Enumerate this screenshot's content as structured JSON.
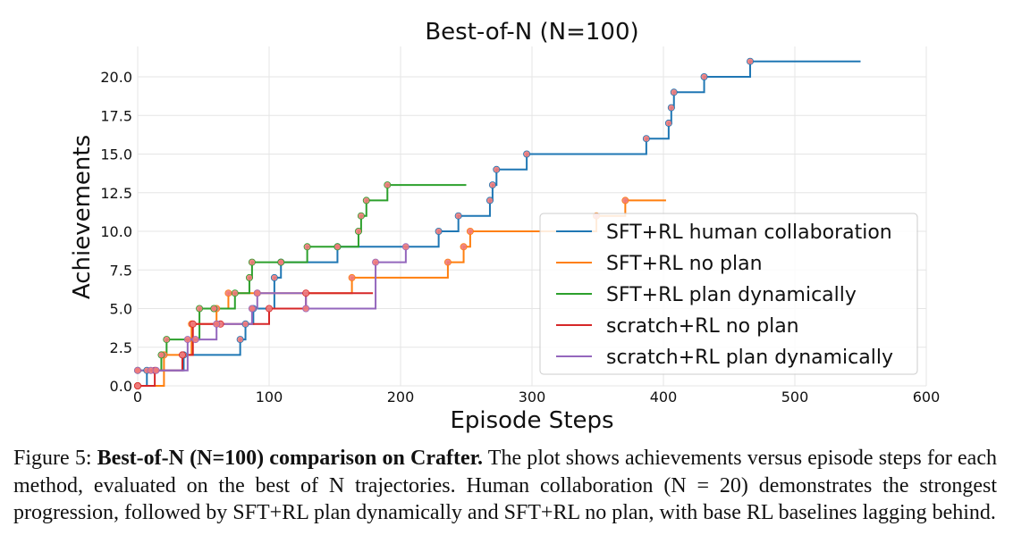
{
  "chart_data": {
    "type": "line",
    "title": "Best-of-N (N=100)",
    "xlabel": "Episode Steps",
    "ylabel": "Achievements",
    "xlim": [
      0,
      600
    ],
    "ylim": [
      0,
      22
    ],
    "xticks": [
      "0",
      "100",
      "200",
      "300",
      "400",
      "500",
      "600"
    ],
    "yticks": [
      "0.0",
      "2.5",
      "5.0",
      "7.5",
      "10.0",
      "12.5",
      "15.0",
      "17.5",
      "20.0"
    ],
    "grid": true,
    "legend_position": "center-right",
    "series": [
      {
        "name": "SFT+RL human collaboration",
        "color": "#1f77b4",
        "points": [
          [
            0,
            0
          ],
          [
            7,
            1
          ],
          [
            35,
            2
          ],
          [
            78,
            3
          ],
          [
            82,
            4
          ],
          [
            88,
            5
          ],
          [
            104,
            7
          ],
          [
            109,
            8
          ],
          [
            152,
            9
          ],
          [
            229,
            10
          ],
          [
            244,
            11
          ],
          [
            268,
            12
          ],
          [
            270,
            13
          ],
          [
            273,
            14
          ],
          [
            296,
            15
          ],
          [
            387,
            16
          ],
          [
            404,
            17
          ],
          [
            406,
            18
          ],
          [
            408,
            19
          ],
          [
            431,
            20
          ],
          [
            466,
            21
          ],
          [
            550,
            21
          ]
        ]
      },
      {
        "name": "SFT+RL no plan",
        "color": "#ff7f0e",
        "points": [
          [
            0,
            0
          ],
          [
            20,
            2
          ],
          [
            41,
            4
          ],
          [
            60,
            5
          ],
          [
            69,
            6
          ],
          [
            91,
            6
          ],
          [
            163,
            7
          ],
          [
            236,
            8
          ],
          [
            248,
            9
          ],
          [
            253,
            10
          ],
          [
            349,
            11
          ],
          [
            371,
            12
          ],
          [
            402,
            12
          ]
        ]
      },
      {
        "name": "SFT+RL plan dynamically",
        "color": "#2ca02c",
        "points": [
          [
            0,
            1
          ],
          [
            18,
            2
          ],
          [
            22,
            3
          ],
          [
            47,
            5
          ],
          [
            58,
            5
          ],
          [
            74,
            6
          ],
          [
            85,
            7
          ],
          [
            87,
            8
          ],
          [
            109,
            8
          ],
          [
            129,
            9
          ],
          [
            152,
            9
          ],
          [
            168,
            10
          ],
          [
            170,
            11
          ],
          [
            174,
            12
          ],
          [
            190,
            13
          ],
          [
            250,
            13
          ]
        ]
      },
      {
        "name": "scratch+RL no plan",
        "color": "#d62728",
        "points": [
          [
            0,
            0
          ],
          [
            13,
            1
          ],
          [
            34,
            2
          ],
          [
            42,
            4
          ],
          [
            63,
            4
          ],
          [
            100,
            5
          ],
          [
            128,
            6
          ],
          [
            179,
            6
          ]
        ]
      },
      {
        "name": "scratch+RL plan dynamically",
        "color": "#9467bd",
        "points": [
          [
            0,
            1
          ],
          [
            10,
            1
          ],
          [
            14,
            1
          ],
          [
            38,
            3
          ],
          [
            44,
            3
          ],
          [
            60,
            4
          ],
          [
            87,
            5
          ],
          [
            91,
            6
          ],
          [
            128,
            5
          ],
          [
            181,
            8
          ],
          [
            204,
            9
          ]
        ]
      }
    ]
  },
  "caption": {
    "prefix": "Figure 5: ",
    "bold": "Best-of-N (N=100) comparison on Crafter.",
    "body": " The plot shows achievements versus episode steps for each method, evaluated on the best of N trajectories.  Human collaboration (N = 20) demonstrates the strongest progression, followed by SFT+RL plan dynamically and SFT+RL no plan, with base RL baselines lagging behind."
  }
}
